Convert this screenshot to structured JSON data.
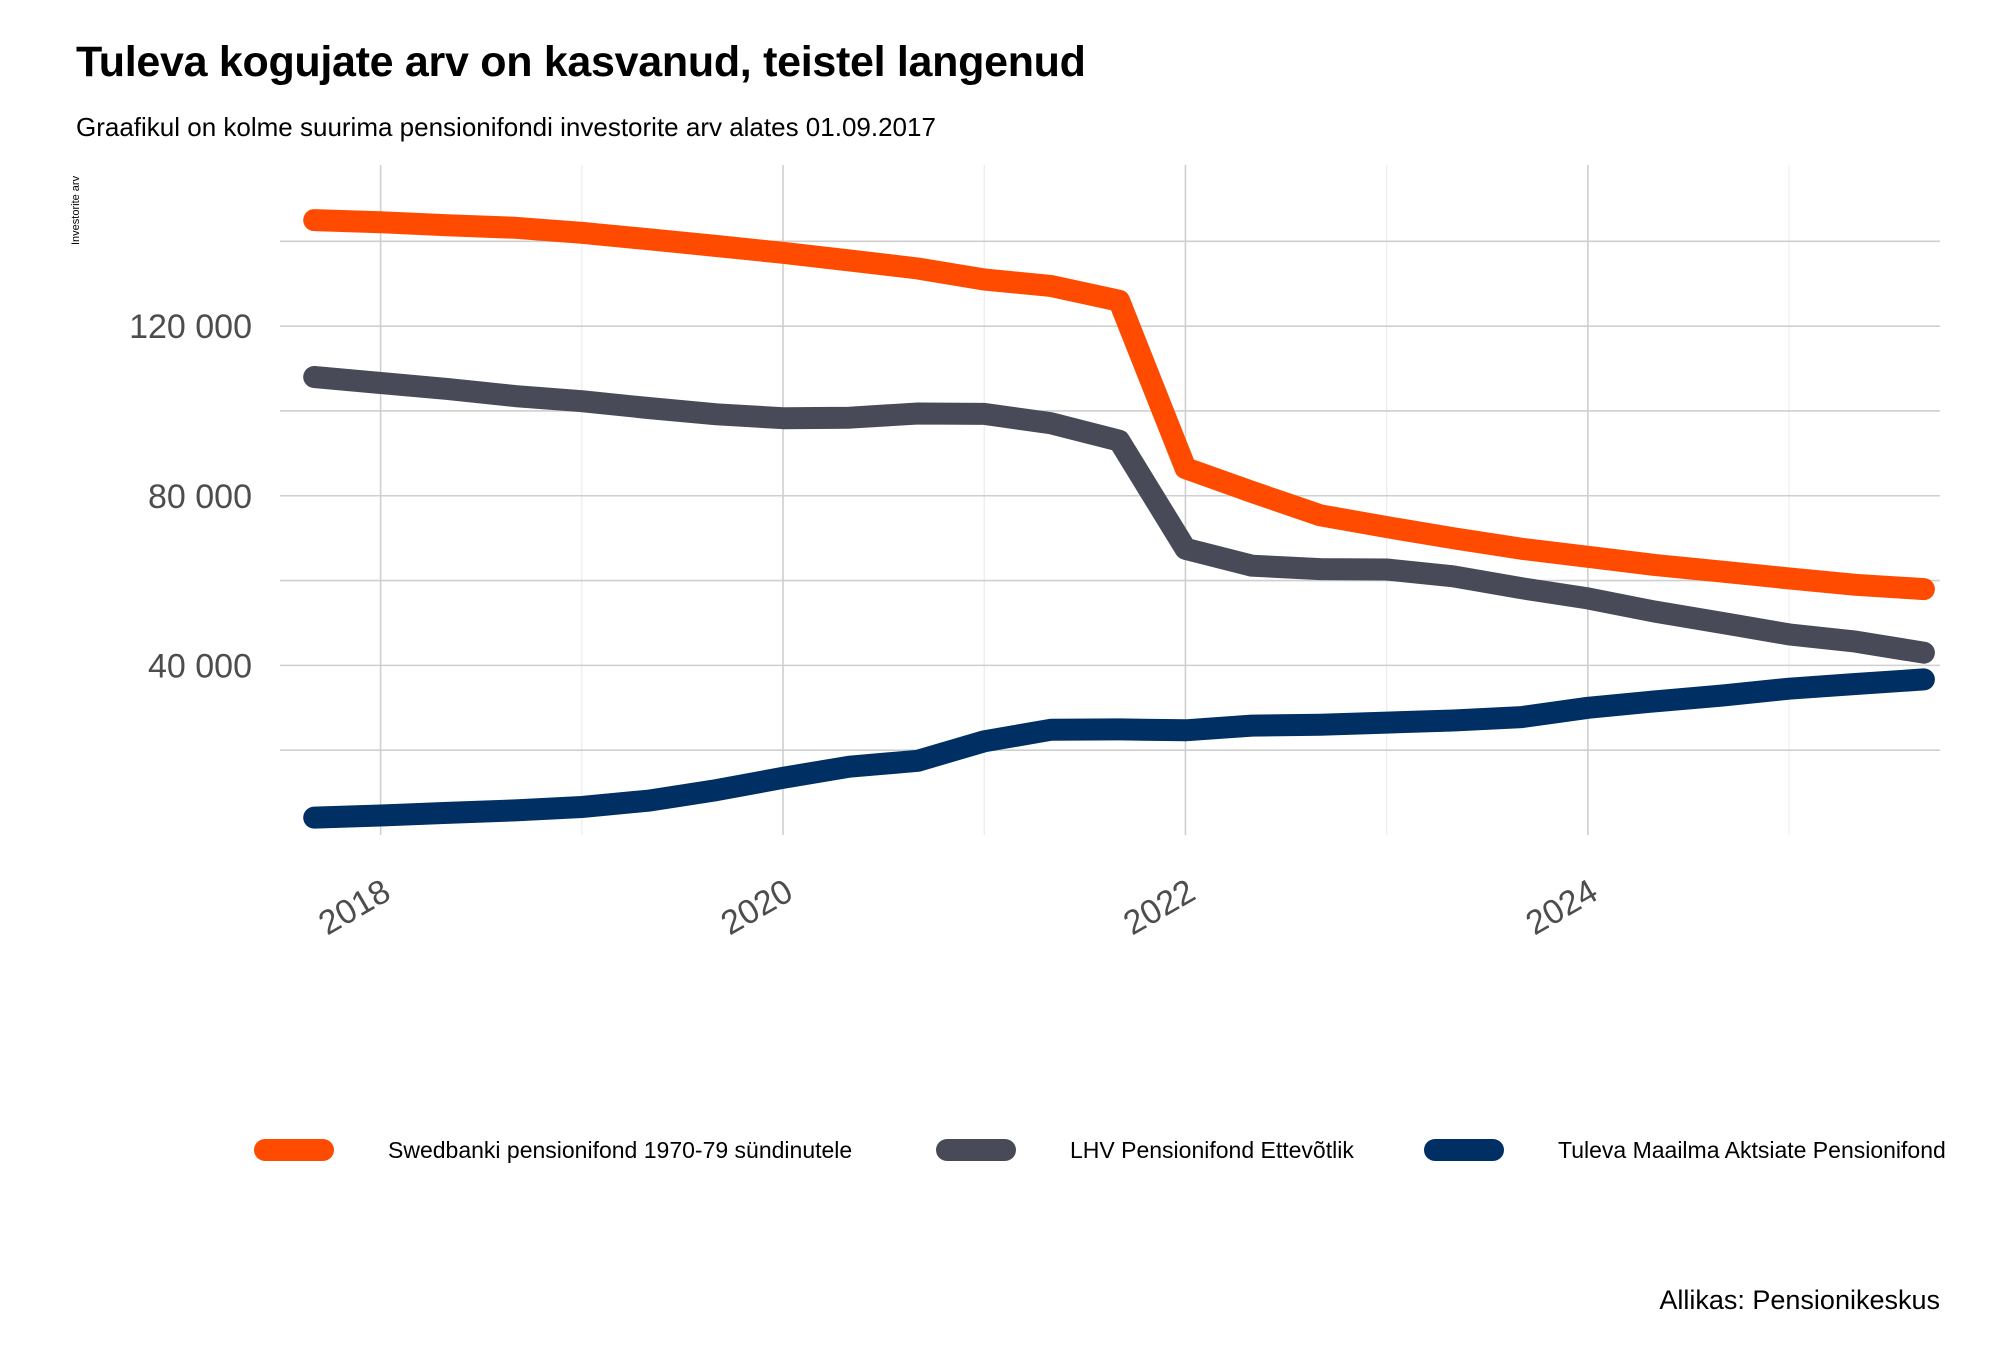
{
  "title": "Tuleva kogujate arv on kasvanud, teistel langenud",
  "subtitle": "Graafikul on kolme suurima pensionifondi investorite arv alates 01.09.2017",
  "caption": "Allikas: Pensionikeskus",
  "chart_data": {
    "type": "line",
    "ylabel": "Investorite arv",
    "xlabel": "",
    "x_ticks": [
      "2018",
      "2020",
      "2022",
      "2024"
    ],
    "y_ticks": [
      "40 000",
      "80 000",
      "120 000"
    ],
    "ylim": [
      0,
      160000
    ],
    "grid": true,
    "legend_position": "bottom",
    "x": [
      2017.67,
      2018.0,
      2018.33,
      2018.67,
      2019.0,
      2019.33,
      2019.67,
      2020.0,
      2020.33,
      2020.67,
      2021.0,
      2021.33,
      2021.67,
      2022.0,
      2022.33,
      2022.67,
      2023.0,
      2023.33,
      2023.67,
      2024.0,
      2024.33,
      2024.67,
      2025.0,
      2025.33,
      2025.67
    ],
    "series": [
      {
        "name": "Swedbanki pensionifond 1970-79 sündinutele",
        "color": "#FF4B00",
        "values": [
          145000,
          144500,
          143800,
          143200,
          142000,
          140500,
          138900,
          137300,
          135500,
          133600,
          131000,
          129500,
          126000,
          86500,
          80900,
          75400,
          72600,
          70000,
          67500,
          65600,
          63700,
          62100,
          60500,
          59000,
          58000
        ]
      },
      {
        "name": "LHV Pensionifond Ettevõtlik",
        "color": "#484B57",
        "values": [
          108000,
          106600,
          105200,
          103500,
          102300,
          100700,
          99200,
          98300,
          98400,
          99400,
          99300,
          97100,
          93000,
          67500,
          63500,
          62700,
          62600,
          61000,
          58200,
          55800,
          52700,
          50000,
          47300,
          45600,
          43000
        ]
      },
      {
        "name": "Tuleva Maailma Aktsiate Pensionifond",
        "color": "#002F63",
        "values": [
          4100,
          4600,
          5200,
          5800,
          6600,
          8100,
          10600,
          13500,
          16100,
          17500,
          22100,
          24800,
          24900,
          24700,
          25800,
          26000,
          26500,
          27000,
          27800,
          30000,
          31500,
          32900,
          34500,
          35600,
          36700
        ]
      }
    ]
  }
}
